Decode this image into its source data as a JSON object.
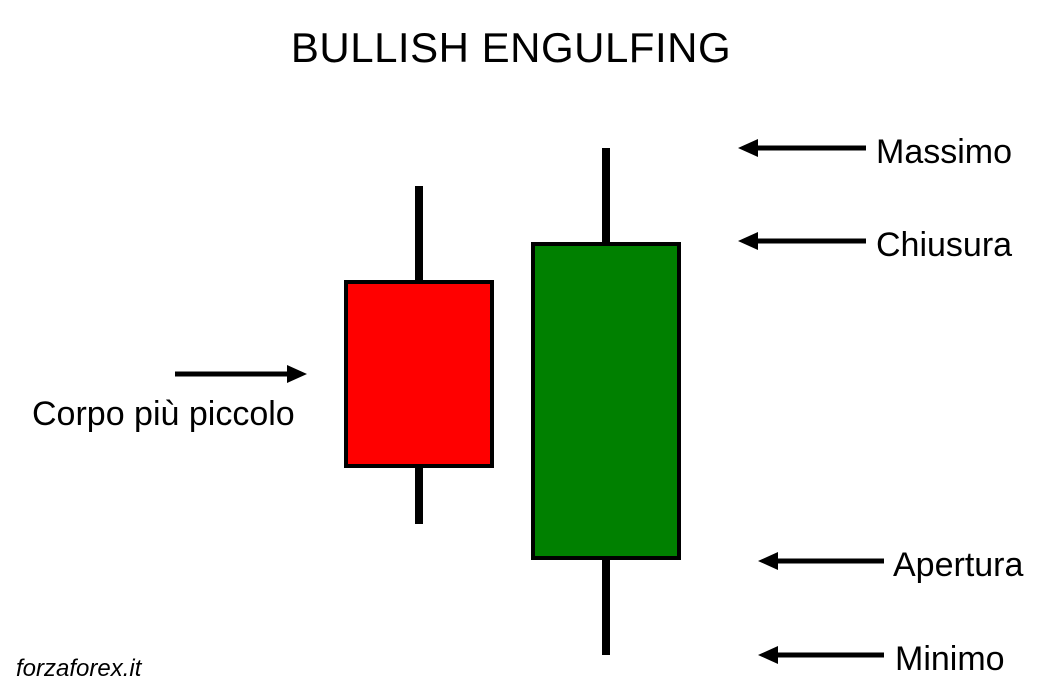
{
  "title": "BULLISH ENGULFING",
  "labels": {
    "high": "Massimo",
    "close": "Chiusura",
    "open": "Apertura",
    "low": "Minimo",
    "smaller_body": "Corpo più piccolo"
  },
  "watermark": "forzaforex.it",
  "colors": {
    "bearish_body": "#ff0000",
    "bullish_body": "#008000",
    "outline": "#000000",
    "background": "#ffffff"
  },
  "candles": [
    {
      "name": "bearish-candle",
      "role": "previous",
      "direction": "down"
    },
    {
      "name": "bullish-candle",
      "role": "engulfing",
      "direction": "up"
    }
  ]
}
